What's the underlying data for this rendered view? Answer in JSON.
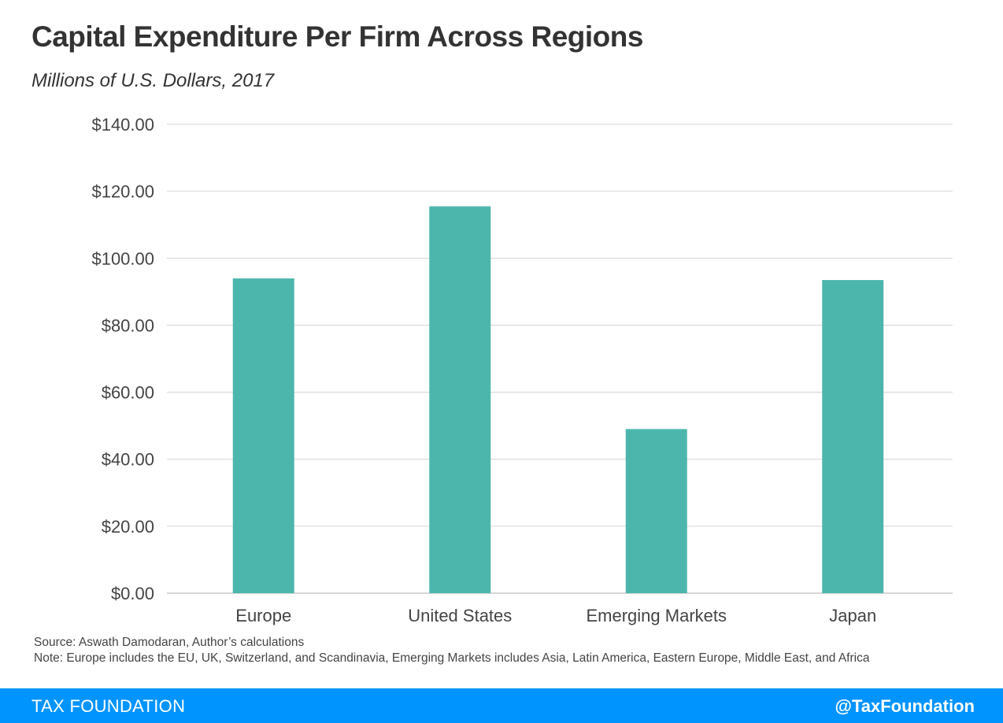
{
  "header": {
    "title": "Capital Expenditure Per Firm Across Regions",
    "subtitle": "Millions of U.S. Dollars, 2017"
  },
  "chart_data": {
    "type": "bar",
    "categories": [
      "Europe",
      "United States",
      "Emerging Markets",
      "Japan"
    ],
    "values": [
      94,
      115.5,
      49,
      93.5
    ],
    "ylim": [
      0,
      140
    ],
    "yticks": [
      0,
      20,
      40,
      60,
      80,
      100,
      120,
      140
    ],
    "ytick_labels": [
      "$0.00",
      "$20.00",
      "$40.00",
      "$60.00",
      "$80.00",
      "$100.00",
      "$120.00",
      "$140.00"
    ],
    "xlabel": "",
    "ylabel": "",
    "grid": true,
    "legend": "none",
    "bar_color": "#4db6ac"
  },
  "notes": {
    "source": "Source: Aswath Damodaran, Author’s calculations",
    "note": "Note: Europe includes the EU, UK, Switzerland, and Scandinavia, Emerging Markets includes Asia, Latin America, Eastern Europe, Middle East, and Africa"
  },
  "footer": {
    "brand": "TAX FOUNDATION",
    "handle": "@TaxFoundation",
    "color": "#0094ff"
  }
}
